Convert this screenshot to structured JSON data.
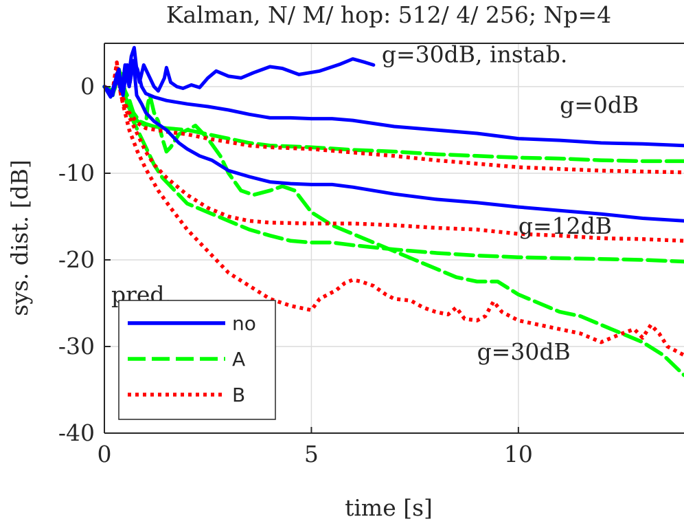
{
  "chart_data": {
    "type": "line",
    "title": "Kalman, N/ M/ hop: 512/ 4/ 256; Np=4",
    "xlabel": "time [s]",
    "ylabel": "sys. dist. [dB]",
    "xlim": [
      0,
      14
    ],
    "ylim": [
      -40,
      5
    ],
    "xticks": [
      0,
      5,
      10
    ],
    "xtick_labels": [
      "0",
      "5",
      "10"
    ],
    "yticks": [
      0,
      -10,
      -20,
      -30,
      -40
    ],
    "ytick_labels": [
      "0",
      "-10",
      "-20",
      "-30",
      "-40"
    ],
    "grid": true,
    "legend": {
      "title": "pred.",
      "placement": "bottom-left",
      "entries": [
        {
          "label": "no",
          "color": "#0000ff",
          "style": "solid"
        },
        {
          "label": "A",
          "color": "#00ff00",
          "style": "dashed"
        },
        {
          "label": "B",
          "color": "#ff0000",
          "style": "dotted"
        }
      ]
    },
    "annotations": [
      {
        "text": "g=30dB, instab.",
        "x": 6.7,
        "y": 2.8
      },
      {
        "text": "g=0dB",
        "x": 11.0,
        "y": -3.0
      },
      {
        "text": "g=12dB",
        "x": 10.0,
        "y": -17.0
      },
      {
        "text": "g=30dB",
        "x": 9.0,
        "y": -31.5
      }
    ],
    "series": [
      {
        "group": "g=30dB, instab.",
        "pred": "no",
        "color": "#0000ff",
        "style": "solid",
        "points": [
          [
            0,
            0
          ],
          [
            0.15,
            -1.2
          ],
          [
            0.25,
            0.5
          ],
          [
            0.35,
            2
          ],
          [
            0.42,
            -0.5
          ],
          [
            0.5,
            2.5
          ],
          [
            0.58,
            1
          ],
          [
            0.65,
            3.5
          ],
          [
            0.72,
            4.5
          ],
          [
            0.78,
            2
          ],
          [
            0.85,
            0.5
          ],
          [
            0.95,
            2.5
          ],
          [
            1.05,
            1.5
          ],
          [
            1.2,
            0
          ],
          [
            1.3,
            -0.5
          ],
          [
            1.45,
            1
          ],
          [
            1.5,
            2.2
          ],
          [
            1.6,
            0.5
          ],
          [
            1.75,
            0
          ],
          [
            1.9,
            -0.2
          ],
          [
            2.1,
            0.2
          ],
          [
            2.3,
            -0.1
          ],
          [
            2.5,
            1
          ],
          [
            2.7,
            1.8
          ],
          [
            3.0,
            1.2
          ],
          [
            3.3,
            1
          ],
          [
            3.6,
            1.6
          ],
          [
            4.0,
            2.3
          ],
          [
            4.3,
            2.1
          ],
          [
            4.7,
            1.4
          ],
          [
            5.2,
            1.8
          ],
          [
            5.7,
            2.6
          ],
          [
            6.0,
            3.2
          ],
          [
            6.3,
            2.8
          ],
          [
            6.5,
            2.5
          ]
        ]
      },
      {
        "group": "g=0dB",
        "pred": "no",
        "color": "#0000ff",
        "style": "solid",
        "points": [
          [
            0,
            0
          ],
          [
            0.2,
            -0.8
          ],
          [
            0.35,
            1.5
          ],
          [
            0.45,
            -1
          ],
          [
            0.55,
            2.5
          ],
          [
            0.62,
            0.5
          ],
          [
            0.7,
            3
          ],
          [
            0.8,
            2
          ],
          [
            0.9,
            0
          ],
          [
            1.0,
            -0.8
          ],
          [
            1.2,
            -1.2
          ],
          [
            1.5,
            -1.6
          ],
          [
            2.0,
            -2
          ],
          [
            2.5,
            -2.3
          ],
          [
            3.0,
            -2.7
          ],
          [
            3.5,
            -3.2
          ],
          [
            4.0,
            -3.6
          ],
          [
            4.5,
            -3.6
          ],
          [
            5.0,
            -3.7
          ],
          [
            5.5,
            -3.7
          ],
          [
            6.0,
            -3.9
          ],
          [
            7.0,
            -4.6
          ],
          [
            8.0,
            -5.0
          ],
          [
            9.0,
            -5.4
          ],
          [
            10.0,
            -6.0
          ],
          [
            11.0,
            -6.2
          ],
          [
            12.0,
            -6.5
          ],
          [
            13.0,
            -6.6
          ],
          [
            14.0,
            -6.8
          ]
        ]
      },
      {
        "group": "g=12dB",
        "pred": "no",
        "color": "#0000ff",
        "style": "solid",
        "points": [
          [
            0,
            0
          ],
          [
            0.2,
            -1
          ],
          [
            0.3,
            1.5
          ],
          [
            0.4,
            -0.5
          ],
          [
            0.5,
            2
          ],
          [
            0.6,
            0
          ],
          [
            0.7,
            3
          ],
          [
            0.78,
            -1
          ],
          [
            0.9,
            -2
          ],
          [
            1.0,
            -3
          ],
          [
            1.2,
            -4
          ],
          [
            1.5,
            -5
          ],
          [
            1.8,
            -6.5
          ],
          [
            2.0,
            -7.2
          ],
          [
            2.3,
            -8
          ],
          [
            2.6,
            -8.5
          ],
          [
            3.0,
            -9.7
          ],
          [
            3.5,
            -10.4
          ],
          [
            4.0,
            -11
          ],
          [
            4.5,
            -11.2
          ],
          [
            5.0,
            -11.3
          ],
          [
            5.5,
            -11.3
          ],
          [
            6.0,
            -11.6
          ],
          [
            7.0,
            -12.4
          ],
          [
            8.0,
            -13.0
          ],
          [
            9.0,
            -13.4
          ],
          [
            10.0,
            -13.9
          ],
          [
            11.0,
            -14.3
          ],
          [
            12.0,
            -14.7
          ],
          [
            13.0,
            -15.2
          ],
          [
            14.0,
            -15.5
          ]
        ]
      },
      {
        "group": "g=0dB",
        "pred": "A",
        "color": "#00ff00",
        "style": "dashed",
        "points": [
          [
            0,
            0
          ],
          [
            0.2,
            -1
          ],
          [
            0.35,
            2
          ],
          [
            0.5,
            -0.5
          ],
          [
            0.6,
            -1.5
          ],
          [
            0.7,
            -3
          ],
          [
            0.85,
            -4
          ],
          [
            1.0,
            -4.3
          ],
          [
            1.2,
            -4.6
          ],
          [
            1.5,
            -4.8
          ],
          [
            2.0,
            -5
          ],
          [
            2.5,
            -5.5
          ],
          [
            3.0,
            -6
          ],
          [
            3.5,
            -6.5
          ],
          [
            4.0,
            -6.8
          ],
          [
            5.0,
            -7.0
          ],
          [
            6.0,
            -7.3
          ],
          [
            7.0,
            -7.5
          ],
          [
            8.0,
            -7.8
          ],
          [
            9.0,
            -8.0
          ],
          [
            10.0,
            -8.2
          ],
          [
            11.0,
            -8.3
          ],
          [
            12.0,
            -8.5
          ],
          [
            13.0,
            -8.6
          ],
          [
            14.0,
            -8.6
          ]
        ]
      },
      {
        "group": "g=12dB",
        "pred": "A",
        "color": "#00ff00",
        "style": "dashed",
        "points": [
          [
            0,
            0
          ],
          [
            0.2,
            -0.8
          ],
          [
            0.4,
            1.5
          ],
          [
            0.5,
            -1
          ],
          [
            0.6,
            -3
          ],
          [
            0.8,
            -5
          ],
          [
            1.0,
            -7
          ],
          [
            1.2,
            -9
          ],
          [
            1.4,
            -10.5
          ],
          [
            1.7,
            -12
          ],
          [
            2.0,
            -13.5
          ],
          [
            2.5,
            -14.5
          ],
          [
            3.0,
            -15.5
          ],
          [
            3.5,
            -16.5
          ],
          [
            4.0,
            -17.2
          ],
          [
            4.5,
            -17.8
          ],
          [
            5.0,
            -18.0
          ],
          [
            5.5,
            -18.0
          ],
          [
            6.0,
            -18.3
          ],
          [
            7.0,
            -18.8
          ],
          [
            8.0,
            -19.2
          ],
          [
            9.0,
            -19.5
          ],
          [
            10.0,
            -19.7
          ],
          [
            11.0,
            -19.8
          ],
          [
            12.0,
            -19.9
          ],
          [
            13.0,
            -20.0
          ],
          [
            14.0,
            -20.2
          ]
        ]
      },
      {
        "group": "g=30dB",
        "pred": "A",
        "color": "#00ff00",
        "style": "dashed",
        "points": [
          [
            0,
            0
          ],
          [
            0.2,
            -0.5
          ],
          [
            0.4,
            1.5
          ],
          [
            0.5,
            -1
          ],
          [
            0.6,
            -2.5
          ],
          [
            0.8,
            -4
          ],
          [
            1.0,
            -4.5
          ],
          [
            1.05,
            -2
          ],
          [
            1.1,
            -1
          ],
          [
            1.2,
            -3
          ],
          [
            1.3,
            -4
          ],
          [
            1.4,
            -6
          ],
          [
            1.5,
            -7.5
          ],
          [
            1.6,
            -7
          ],
          [
            1.8,
            -5.5
          ],
          [
            2.0,
            -5
          ],
          [
            2.2,
            -4.5
          ],
          [
            2.5,
            -6
          ],
          [
            2.8,
            -8
          ],
          [
            3.0,
            -10
          ],
          [
            3.3,
            -12
          ],
          [
            3.6,
            -12.5
          ],
          [
            4.0,
            -12
          ],
          [
            4.3,
            -11.5
          ],
          [
            4.6,
            -12
          ],
          [
            5.0,
            -14.5
          ],
          [
            5.5,
            -16
          ],
          [
            6.0,
            -17
          ],
          [
            6.5,
            -18
          ],
          [
            7.0,
            -19
          ],
          [
            7.5,
            -20
          ],
          [
            8.0,
            -21
          ],
          [
            8.5,
            -22
          ],
          [
            9.0,
            -22.5
          ],
          [
            9.5,
            -22.5
          ],
          [
            10.0,
            -24
          ],
          [
            10.5,
            -25
          ],
          [
            11.0,
            -26
          ],
          [
            11.5,
            -26.5
          ],
          [
            12.0,
            -27.5
          ],
          [
            12.5,
            -28.5
          ],
          [
            13.0,
            -29.5
          ],
          [
            13.5,
            -31
          ],
          [
            14.0,
            -33.3
          ]
        ]
      },
      {
        "group": "g=0dB",
        "pred": "B",
        "color": "#ff0000",
        "style": "dotted",
        "points": [
          [
            0,
            0
          ],
          [
            0.2,
            -1
          ],
          [
            0.3,
            2.5
          ],
          [
            0.4,
            -0.5
          ],
          [
            0.5,
            -2
          ],
          [
            0.6,
            -3
          ],
          [
            0.8,
            -4.2
          ],
          [
            1.0,
            -4.8
          ],
          [
            1.5,
            -5.2
          ],
          [
            2.0,
            -5.5
          ],
          [
            2.5,
            -6
          ],
          [
            3.0,
            -6.4
          ],
          [
            3.5,
            -6.8
          ],
          [
            4.0,
            -7
          ],
          [
            5.0,
            -7.2
          ],
          [
            6.0,
            -7.6
          ],
          [
            7.0,
            -8
          ],
          [
            8.0,
            -8.5
          ],
          [
            9.0,
            -8.9
          ],
          [
            10.0,
            -9.3
          ],
          [
            11.0,
            -9.5
          ],
          [
            12.0,
            -9.7
          ],
          [
            13.0,
            -9.8
          ],
          [
            14.0,
            -9.9
          ]
        ]
      },
      {
        "group": "g=12dB",
        "pred": "B",
        "color": "#ff0000",
        "style": "dotted",
        "points": [
          [
            0,
            0
          ],
          [
            0.2,
            -0.5
          ],
          [
            0.3,
            2.5
          ],
          [
            0.4,
            -1
          ],
          [
            0.5,
            -2.5
          ],
          [
            0.6,
            -3.5
          ],
          [
            0.8,
            -5.5
          ],
          [
            1.0,
            -7.5
          ],
          [
            1.2,
            -9
          ],
          [
            1.5,
            -10.5
          ],
          [
            2.0,
            -12.5
          ],
          [
            2.5,
            -14
          ],
          [
            3.0,
            -15
          ],
          [
            3.5,
            -15.5
          ],
          [
            4.0,
            -15.7
          ],
          [
            5.0,
            -15.8
          ],
          [
            6.0,
            -15.8
          ],
          [
            7.0,
            -16
          ],
          [
            8.0,
            -16.3
          ],
          [
            9.0,
            -16.5
          ],
          [
            10.0,
            -17
          ],
          [
            11.0,
            -17.2
          ],
          [
            12.0,
            -17.5
          ],
          [
            13.0,
            -17.6
          ],
          [
            14.0,
            -17.8
          ]
        ]
      },
      {
        "group": "g=30dB",
        "pred": "B",
        "color": "#ff0000",
        "style": "dotted",
        "points": [
          [
            0,
            0
          ],
          [
            0.2,
            -0.5
          ],
          [
            0.3,
            2.8
          ],
          [
            0.4,
            -1
          ],
          [
            0.5,
            -3
          ],
          [
            0.6,
            -5
          ],
          [
            0.8,
            -7.5
          ],
          [
            1.0,
            -9.5
          ],
          [
            1.3,
            -12
          ],
          [
            1.6,
            -14
          ],
          [
            2.0,
            -16.5
          ],
          [
            2.5,
            -19
          ],
          [
            3.0,
            -21.5
          ],
          [
            3.5,
            -23
          ],
          [
            4.0,
            -24.5
          ],
          [
            4.5,
            -25.3
          ],
          [
            5.0,
            -25.8
          ],
          [
            5.2,
            -24.5
          ],
          [
            5.4,
            -24
          ],
          [
            5.6,
            -23.5
          ],
          [
            5.8,
            -22.7
          ],
          [
            6.0,
            -22.3
          ],
          [
            6.2,
            -22.5
          ],
          [
            6.5,
            -23
          ],
          [
            6.8,
            -24
          ],
          [
            7.0,
            -24.5
          ],
          [
            7.4,
            -24.7
          ],
          [
            7.7,
            -25.5
          ],
          [
            8.0,
            -26
          ],
          [
            8.3,
            -26.3
          ],
          [
            8.5,
            -25.5
          ],
          [
            8.7,
            -26.8
          ],
          [
            9.0,
            -27
          ],
          [
            9.2,
            -26.5
          ],
          [
            9.4,
            -24.8
          ],
          [
            9.6,
            -26
          ],
          [
            10.0,
            -27
          ],
          [
            10.5,
            -27.5
          ],
          [
            11.0,
            -28
          ],
          [
            11.5,
            -28.5
          ],
          [
            12.0,
            -29.5
          ],
          [
            12.5,
            -28.5
          ],
          [
            12.8,
            -28
          ],
          [
            13.0,
            -29
          ],
          [
            13.2,
            -27.5
          ],
          [
            13.4,
            -28.5
          ],
          [
            13.6,
            -30
          ],
          [
            14.0,
            -31
          ]
        ]
      }
    ]
  }
}
